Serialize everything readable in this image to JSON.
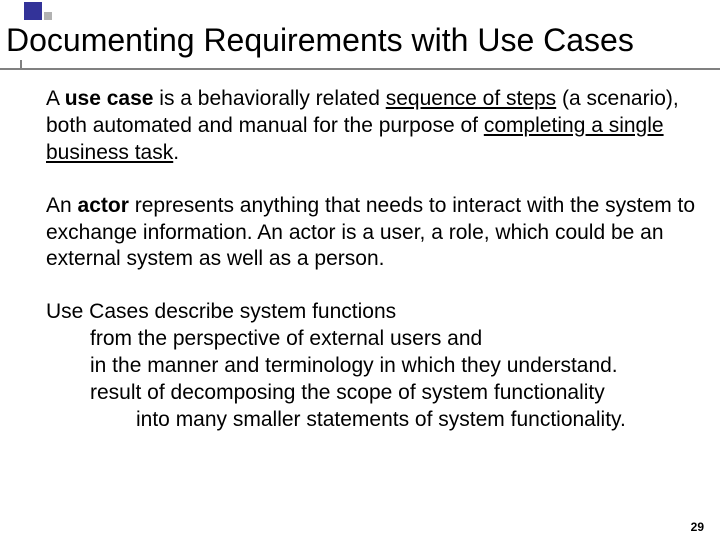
{
  "colors": {
    "accent_square": "#333399",
    "small_square": "#b2b2b2",
    "rule": "#808080",
    "text": "#000000",
    "background": "#ffffff"
  },
  "title": "Documenting Requirements with Use Cases",
  "para1": {
    "t1": "A ",
    "t2": "use case",
    "t3": " is a behaviorally related ",
    "t4": "sequence of steps",
    "t5": " (a scenario), both automated and manual for the purpose of ",
    "t6": "completing a single business task",
    "t7": "."
  },
  "para2": {
    "t1": "An ",
    "t2": "actor",
    "t3": " represents anything that needs to interact with the system to exchange information. An actor is a user, a role, which could be an external system as well as a person."
  },
  "para3": {
    "lead": "Use Cases describe system functions",
    "line1": "from the perspective of external users and",
    "line2": "in the manner and terminology in which they understand.",
    "line3": "result of decomposing the scope of system functionality",
    "line4": "into many smaller statements of system functionality."
  },
  "page_number": "29"
}
